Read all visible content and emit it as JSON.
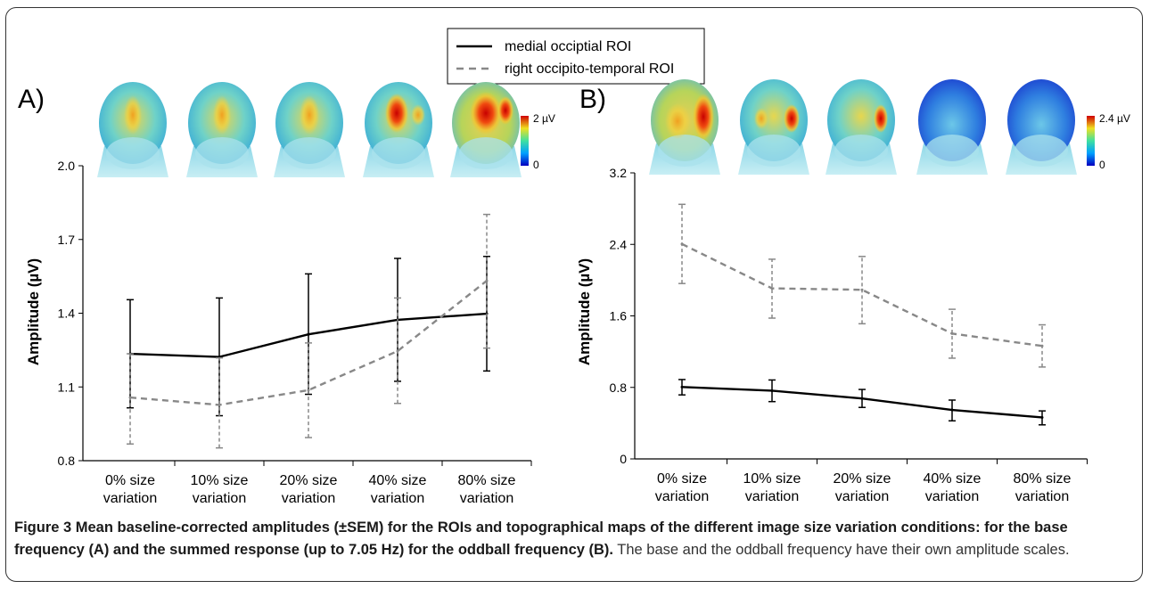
{
  "legend": {
    "entries": [
      {
        "label": "medial occiptial ROI",
        "color": "#000000",
        "style": "solid"
      },
      {
        "label": "right occipito-temporal ROI",
        "color": "#888888",
        "style": "dashed"
      }
    ]
  },
  "panels": [
    {
      "label": "A)",
      "colorbar": {
        "max": "2 µV",
        "min": "0"
      }
    },
    {
      "label": "B)",
      "colorbar": {
        "max": "2.4 µV",
        "min": "0"
      }
    }
  ],
  "caption": {
    "bold": "Figure 3 Mean baseline-corrected amplitudes (±SEM) for the ROIs and topographical maps of the different image size variation conditions: for the base frequency (A) and the summed response (up to 7.05 Hz) for the oddball frequency (B).",
    "normal": " The base and the oddball frequency have their own amplitude scales."
  },
  "chart_data": [
    {
      "type": "line",
      "categories": [
        "0% size variation",
        "10% size variation",
        "20% size variation",
        "40% size variation",
        "80% size variation"
      ],
      "ylabel": "Amplitude (µV)",
      "ylim": [
        0.8,
        2.0
      ],
      "yticks": [
        "0.8",
        "1.1",
        "1.4",
        "1.7",
        "2.0"
      ],
      "grid": false,
      "series": [
        {
          "name": "medial occiptial ROI",
          "values": [
            1.235,
            1.222,
            1.314,
            1.373,
            1.398
          ],
          "err_low": [
            1.015,
            0.983,
            1.07,
            1.123,
            1.165
          ],
          "err_high": [
            1.455,
            1.462,
            1.56,
            1.623,
            1.631
          ]
        },
        {
          "name": "right occipito-temporal ROI",
          "values": [
            1.057,
            1.027,
            1.087,
            1.246,
            1.532
          ],
          "err_low": [
            0.868,
            0.852,
            0.894,
            1.033,
            1.258
          ],
          "err_high": [
            1.235,
            1.218,
            1.279,
            1.462,
            1.802
          ]
        }
      ]
    },
    {
      "type": "line",
      "categories": [
        "0% size variation",
        "10% size variation",
        "20% size variation",
        "40% size variation",
        "80% size variation"
      ],
      "ylabel": "Amplitude (µV)",
      "ylim": [
        0,
        3.2
      ],
      "yticks": [
        "0",
        "0.8",
        "1.6",
        "2.4",
        "3.2"
      ],
      "grid": false,
      "series": [
        {
          "name": "medial occiptial ROI",
          "values": [
            0.804,
            0.763,
            0.676,
            0.548,
            0.464
          ],
          "err_low": [
            0.716,
            0.641,
            0.576,
            0.426,
            0.381
          ],
          "err_high": [
            0.888,
            0.883,
            0.777,
            0.658,
            0.537
          ]
        },
        {
          "name": "right occipito-temporal ROI",
          "values": [
            2.404,
            1.908,
            1.892,
            1.402,
            1.264
          ],
          "err_low": [
            1.962,
            1.575,
            1.512,
            1.127,
            1.028
          ],
          "err_high": [
            2.848,
            2.234,
            2.265,
            1.674,
            1.5
          ]
        }
      ]
    }
  ]
}
